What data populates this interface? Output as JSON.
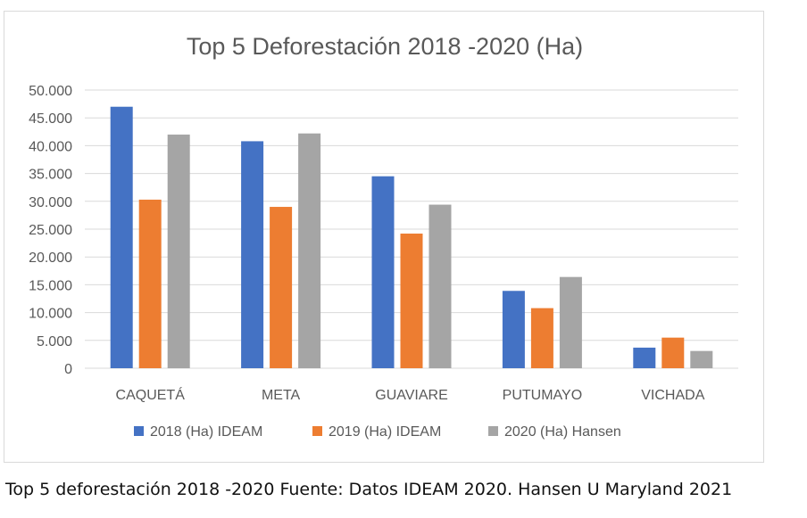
{
  "chart_data": {
    "type": "bar",
    "title": "Top 5 Deforestación 2018 -2020 (Ha)",
    "categories": [
      "CAQUETÁ",
      "META",
      "GUAVIARE",
      "PUTUMAYO",
      "VICHADA"
    ],
    "series": [
      {
        "name": "2018 (Ha) IDEAM",
        "color": "#4472c4",
        "values": [
          47000,
          40800,
          34500,
          13900,
          3700
        ]
      },
      {
        "name": "2019 (Ha) IDEAM",
        "color": "#ed7d31",
        "values": [
          30300,
          29000,
          24200,
          10800,
          5500
        ]
      },
      {
        "name": "2020 (Ha) Hansen",
        "color": "#a5a5a5",
        "values": [
          42000,
          42200,
          29400,
          16400,
          3100
        ]
      }
    ],
    "yticks": [
      "0",
      "5.000",
      "10.000",
      "15.000",
      "20.000",
      "25.000",
      "30.000",
      "35.000",
      "40.000",
      "45.000",
      "50.000"
    ],
    "ylim": [
      0,
      50000
    ],
    "grid": true,
    "legend_position": "bottom"
  },
  "caption": "Top 5 deforestación 2018 -2020 Fuente: Datos IDEAM 2020. Hansen U Maryland 2021"
}
